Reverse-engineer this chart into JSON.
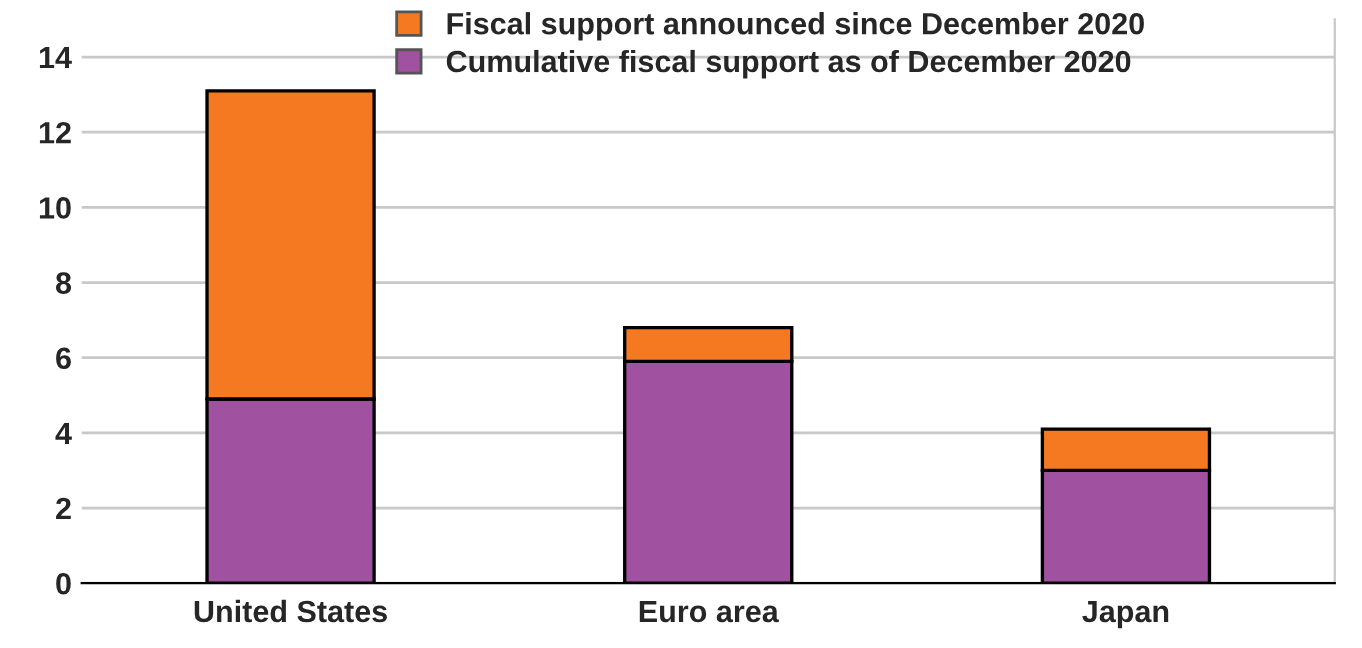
{
  "chart_data": {
    "type": "bar",
    "stacked": true,
    "categories": [
      "United States",
      "Euro area",
      "Japan"
    ],
    "series": [
      {
        "name": "Cumulative fiscal support as of December 2020",
        "color": "#a0519f",
        "values": [
          4.9,
          5.9,
          3.0
        ]
      },
      {
        "name": "Fiscal support announced since December 2020",
        "color": "#f47920",
        "values": [
          8.2,
          0.9,
          1.1
        ]
      }
    ],
    "ylim": [
      0,
      15
    ],
    "yticks": [
      0,
      2,
      4,
      6,
      8,
      10,
      12,
      14
    ],
    "grid": "y",
    "legend": "top"
  }
}
